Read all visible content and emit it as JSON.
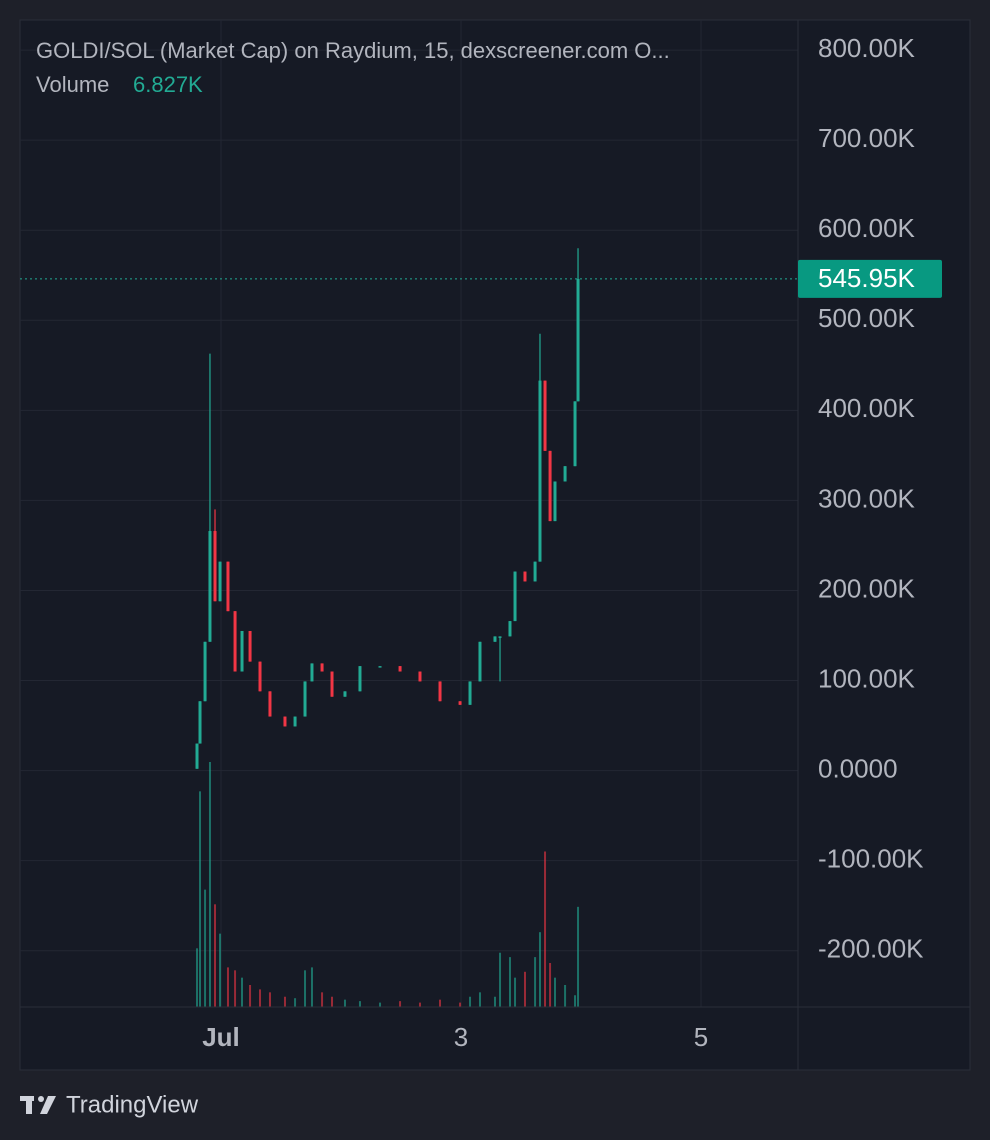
{
  "chart_data": {
    "type": "candlestick",
    "title": "GOLDI/SOL (Market Cap) on Raydium, 15, dexscreener.com  O...",
    "volume_title": "Volume",
    "volume_text": "6.827K",
    "brand": "TradingView",
    "x": [
      0.8,
      0.825,
      0.867,
      0.908,
      0.95,
      0.992,
      1.058,
      1.117,
      1.175,
      1.242,
      1.325,
      1.408,
      1.533,
      1.617,
      1.7,
      1.758,
      1.842,
      1.925,
      2.033,
      2.158,
      2.325,
      2.492,
      2.658,
      2.825,
      2.992,
      3.075,
      3.158,
      3.283,
      3.325,
      3.408,
      3.45,
      3.533,
      3.617,
      3.658,
      3.7,
      3.742,
      3.783,
      3.867,
      3.95,
      3.975
    ],
    "open": [
      2000,
      30000,
      77000,
      143000,
      266000,
      188000,
      232000,
      177000,
      110000,
      155000,
      121000,
      88000,
      60000,
      49000,
      60000,
      99000,
      119000,
      110000,
      82000,
      88000,
      116000,
      116000,
      110000,
      99000,
      77000,
      73000,
      99000,
      143000,
      149000,
      149000,
      166000,
      221000,
      210000,
      232000,
      433000,
      355000,
      277000,
      321000,
      338000,
      410000
    ],
    "close": [
      30000,
      77000,
      143000,
      266000,
      188000,
      232000,
      177000,
      110000,
      155000,
      121000,
      88000,
      60000,
      49000,
      60000,
      99000,
      119000,
      110000,
      82000,
      88000,
      116000,
      116000,
      110000,
      99000,
      77000,
      73000,
      99000,
      143000,
      149000,
      149000,
      166000,
      221000,
      210000,
      232000,
      433000,
      355000,
      277000,
      321000,
      338000,
      410000,
      545950
    ],
    "high": [
      30000,
      77000,
      143000,
      463000,
      290000,
      232000,
      232000,
      177000,
      155000,
      155000,
      121000,
      88000,
      60000,
      60000,
      99000,
      119000,
      119000,
      110000,
      88000,
      116000,
      116000,
      116000,
      110000,
      99000,
      77000,
      99000,
      143000,
      149000,
      149000,
      166000,
      221000,
      221000,
      232000,
      485000,
      433000,
      355000,
      321000,
      338000,
      410000,
      580000
    ],
    "low": [
      2000,
      30000,
      77000,
      143000,
      188000,
      188000,
      177000,
      110000,
      110000,
      121000,
      88000,
      60000,
      49000,
      49000,
      60000,
      99000,
      110000,
      82000,
      82000,
      88000,
      116000,
      110000,
      99000,
      77000,
      73000,
      73000,
      99000,
      143000,
      99000,
      149000,
      166000,
      210000,
      210000,
      232000,
      355000,
      277000,
      277000,
      321000,
      338000,
      410000
    ],
    "volume": [
      4000,
      14700,
      8000,
      16700,
      7000,
      5000,
      2700,
      2500,
      2000,
      1500,
      1200,
      1000,
      700,
      600,
      2500,
      2700,
      1000,
      700,
      500,
      400,
      300,
      400,
      300,
      500,
      300,
      700,
      1000,
      700,
      3700,
      3400,
      2000,
      2400,
      3400,
      5100,
      10600,
      3000,
      2000,
      1500,
      800,
      6827
    ],
    "up_color": "#22ab94",
    "down_color": "#f23645",
    "last_price": {
      "value": 545950,
      "label": "545.95K"
    },
    "xlim": [
      -0.675,
      5.808
    ],
    "xticks": [
      {
        "value": 1,
        "label": "Jul"
      },
      3,
      5
    ],
    "ylim": [
      -262500,
      833400
    ],
    "yticks": [
      {
        "value": -200000,
        "label": "-200.00K"
      },
      {
        "value": -100000,
        "label": "-100.00K"
      },
      {
        "value": 0,
        "label": "0.0000"
      },
      {
        "value": 100000,
        "label": "100.00K"
      },
      {
        "value": 200000,
        "label": "200.00K"
      },
      {
        "value": 300000,
        "label": "300.00K"
      },
      {
        "value": 400000,
        "label": "400.00K"
      },
      {
        "value": 500000,
        "label": "500.00K"
      },
      {
        "value": 600000,
        "label": "600.00K"
      },
      {
        "value": 700000,
        "label": "700.00K"
      },
      {
        "value": 800000,
        "label": "800.00K"
      }
    ],
    "grid": true
  }
}
